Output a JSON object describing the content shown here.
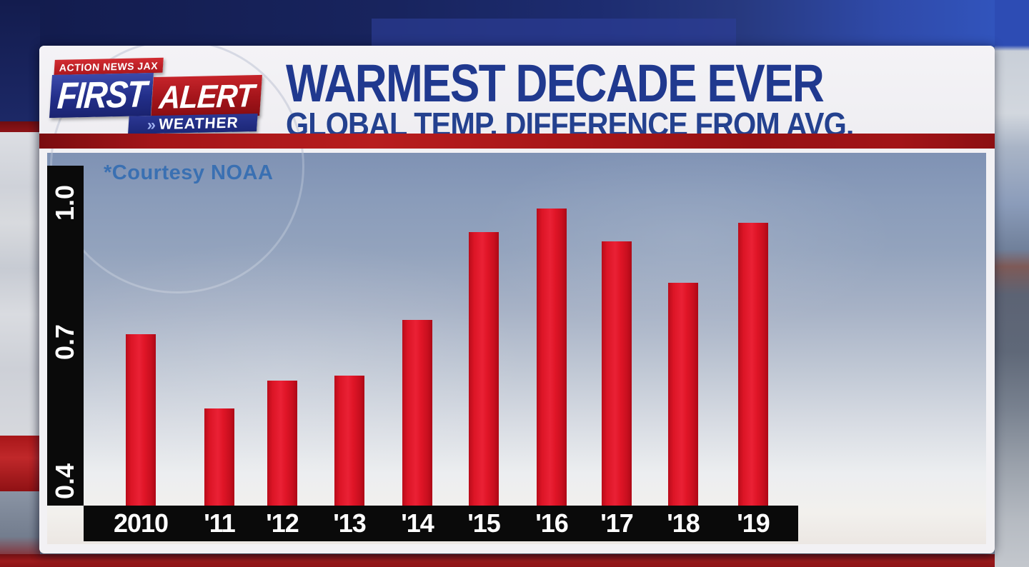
{
  "logo": {
    "station": "ACTION NEWS JAX",
    "first": "FIRST",
    "alert": "ALERT",
    "chevrons": "»",
    "weather": "WEATHER"
  },
  "header": {
    "title": "WARMEST DECADE EVER",
    "subtitle": "GLOBAL TEMP. DIFFERENCE FROM AVG."
  },
  "chart_data": {
    "type": "bar",
    "title": "WARMEST DECADE EVER",
    "subtitle": "GLOBAL TEMP. DIFFERENCE FROM AVG.",
    "source_note": "*Courtesy NOAA",
    "categories": [
      "2010",
      "'11",
      "'12",
      "'13",
      "'14",
      "'15",
      "'16",
      "'17",
      "'18",
      "'19"
    ],
    "values": [
      0.69,
      0.53,
      0.59,
      0.6,
      0.72,
      0.91,
      0.96,
      0.89,
      0.8,
      0.93
    ],
    "yticks": [
      1.0,
      0.7,
      0.4
    ],
    "ytick_labels": [
      "1.0",
      "0.7",
      "0.4"
    ],
    "ylim": [
      0.31,
      1.08
    ],
    "grid": false,
    "legend": null,
    "bar_color": "#e01523",
    "axis_bar_color": "#0a0a0a"
  },
  "colors": {
    "title_blue": "#20398f",
    "divider_red": "#a31518",
    "courtesy_blue": "#3a70b2",
    "logo_blue": "#1f2a80",
    "logo_red": "#b5121c",
    "panel_bg": "#f2f1f4"
  }
}
